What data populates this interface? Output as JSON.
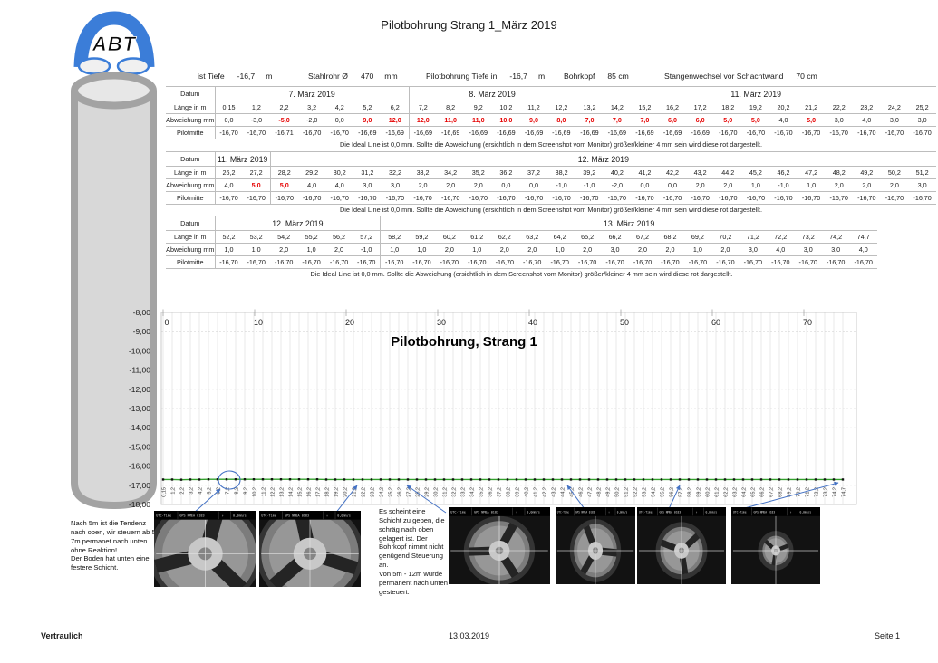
{
  "page": {
    "title": "Pilotbohrung Strang 1_März 2019",
    "footer_left": "Vertraulich",
    "footer_center": "13.03.2019",
    "footer_right": "Seite 1"
  },
  "logo": {
    "text": "ABT"
  },
  "info_row": {
    "items": [
      {
        "label": "ist Tiefe",
        "value": "-16,7",
        "unit": "m"
      },
      {
        "label": "Stahlrohr Ø",
        "value": "470",
        "unit": "mm"
      },
      {
        "label": "Pilotbohrung Tiefe in",
        "value": "-16,7",
        "unit": "m"
      },
      {
        "label": "Bohrkopf",
        "value": "85 cm",
        "unit": ""
      },
      {
        "label": "Stangenwechsel vor Schachtwand",
        "value": "70 cm",
        "unit": ""
      }
    ]
  },
  "row_labels": {
    "datum": "Datum",
    "laenge": "Länge in m",
    "abweichung": "Abweichung mm",
    "pilotmitte": "Pilotmitte"
  },
  "table_note": "Die Ideal Line ist 0,0 mm. Sollte die Abweichung (ersichtlich in dem Screenshot vom Monitor) größer/kleiner 4 mm sein wird diese rot dargestellt.",
  "tables": [
    {
      "groups": [
        {
          "label": "7. März 2019",
          "span": 7
        },
        {
          "label": "8. März 2019",
          "span": 6
        },
        {
          "label": "11. März 2019",
          "span": 13
        }
      ],
      "laenge": [
        "0,15",
        "1,2",
        "2,2",
        "3,2",
        "4,2",
        "5,2",
        "6,2",
        "7,2",
        "8,2",
        "9,2",
        "10,2",
        "11,2",
        "12,2",
        "13,2",
        "14,2",
        "15,2",
        "16,2",
        "17,2",
        "18,2",
        "19,2",
        "20,2",
        "21,2",
        "22,2",
        "23,2",
        "24,2",
        "25,2"
      ],
      "abweichung": [
        "0,0",
        "-3,0",
        "-5,0",
        "-2,0",
        "0,0",
        "9,0",
        "12,0",
        "12,0",
        "11,0",
        "11,0",
        "10,0",
        "9,0",
        "8,0",
        "7,0",
        "7,0",
        "7,0",
        "6,0",
        "6,0",
        "5,0",
        "5,0",
        "4,0",
        "5,0",
        "3,0",
        "4,0",
        "3,0",
        "3,0"
      ],
      "red": [
        2,
        5,
        6,
        7,
        8,
        9,
        10,
        11,
        12,
        13,
        14,
        15,
        16,
        17,
        18,
        19,
        21
      ],
      "pilotmitte": [
        "-16,70",
        "-16,70",
        "-16,71",
        "-16,70",
        "-16,70",
        "-16,69",
        "-16,69",
        "-16,69",
        "-16,69",
        "-16,69",
        "-16,69",
        "-16,69",
        "-16,69",
        "-16,69",
        "-16,69",
        "-16,69",
        "-16,69",
        "-16,69",
        "-16,70",
        "-16,70",
        "-16,70",
        "-16,70",
        "-16,70",
        "-16,70",
        "-16,70",
        "-16,70"
      ]
    },
    {
      "groups": [
        {
          "label": "11. März 2019",
          "span": 2
        },
        {
          "label": "12. März 2019",
          "span": 24
        }
      ],
      "laenge": [
        "26,2",
        "27,2",
        "28,2",
        "29,2",
        "30,2",
        "31,2",
        "32,2",
        "33,2",
        "34,2",
        "35,2",
        "36,2",
        "37,2",
        "38,2",
        "39,2",
        "40,2",
        "41,2",
        "42,2",
        "43,2",
        "44,2",
        "45,2",
        "46,2",
        "47,2",
        "48,2",
        "49,2",
        "50,2",
        "51,2"
      ],
      "abweichung": [
        "4,0",
        "5,0",
        "5,0",
        "4,0",
        "4,0",
        "3,0",
        "3,0",
        "2,0",
        "2,0",
        "2,0",
        "0,0",
        "0,0",
        "-1,0",
        "-1,0",
        "-2,0",
        "0,0",
        "0,0",
        "2,0",
        "2,0",
        "1,0",
        "-1,0",
        "1,0",
        "2,0",
        "2,0",
        "2,0",
        "3,0"
      ],
      "red": [
        1,
        2
      ],
      "pilotmitte": [
        "-16,70",
        "-16,70",
        "-16,70",
        "-16,70",
        "-16,70",
        "-16,70",
        "-16,70",
        "-16,70",
        "-16,70",
        "-16,70",
        "-16,70",
        "-16,70",
        "-16,70",
        "-16,70",
        "-16,70",
        "-16,70",
        "-16,70",
        "-16,70",
        "-16,70",
        "-16,70",
        "-16,70",
        "-16,70",
        "-16,70",
        "-16,70",
        "-16,70",
        "-16,70"
      ]
    },
    {
      "groups": [
        {
          "label": "12. März 2019",
          "span": 6
        },
        {
          "label": "13. März 2019",
          "span": 18
        }
      ],
      "laenge": [
        "52,2",
        "53,2",
        "54,2",
        "55,2",
        "56,2",
        "57,2",
        "58,2",
        "59,2",
        "60,2",
        "61,2",
        "62,2",
        "63,2",
        "64,2",
        "65,2",
        "66,2",
        "67,2",
        "68,2",
        "69,2",
        "70,2",
        "71,2",
        "72,2",
        "73,2",
        "74,2",
        "74,7"
      ],
      "abweichung": [
        "1,0",
        "1,0",
        "2,0",
        "1,0",
        "2,0",
        "-1,0",
        "1,0",
        "1,0",
        "2,0",
        "1,0",
        "2,0",
        "2,0",
        "1,0",
        "2,0",
        "3,0",
        "2,0",
        "2,0",
        "1,0",
        "2,0",
        "3,0",
        "4,0",
        "3,0",
        "3,0",
        "4,0"
      ],
      "red": [],
      "pilotmitte": [
        "-16,70",
        "-16,70",
        "-16,70",
        "-16,70",
        "-16,70",
        "-16,70",
        "-16,70",
        "-16,70",
        "-16,70",
        "-16,70",
        "-16,70",
        "-16,70",
        "-16,70",
        "-16,70",
        "-16,70",
        "-16,70",
        "-16,70",
        "-16,70",
        "-16,70",
        "-16,70",
        "-16,70",
        "-16,70",
        "-16,70",
        "-16,70"
      ]
    }
  ],
  "chart_data": {
    "type": "line",
    "title": "Pilotbohrung, Strang 1",
    "xlabel": "",
    "ylabel": "",
    "ylim": [
      -18,
      -8
    ],
    "grid": true,
    "y_tick_labels": [
      "-8,00",
      "-9,00",
      "-10,00",
      "-11,00",
      "-12,00",
      "-13,00",
      "-14,00",
      "-15,00",
      "-16,00",
      "-17,00",
      "-18,00"
    ],
    "top_axis_labels": [
      "0",
      "10",
      "20",
      "30",
      "40",
      "50",
      "60",
      "70"
    ],
    "x_categories": [
      "0,15",
      "1,2",
      "2,2",
      "3,2",
      "4,2",
      "5,2",
      "6,2",
      "7,2",
      "8,2",
      "9,2",
      "10,2",
      "11,2",
      "12,2",
      "13,2",
      "14,2",
      "15,2",
      "16,2",
      "17,2",
      "18,2",
      "19,2",
      "20,2",
      "21,2",
      "22,2",
      "23,2",
      "24,2",
      "25,2",
      "26,2",
      "27,2",
      "28,2",
      "29,2",
      "30,2",
      "31,2",
      "32,2",
      "33,2",
      "34,2",
      "35,2",
      "36,2",
      "37,2",
      "38,2",
      "39,2",
      "40,2",
      "41,2",
      "42,2",
      "43,2",
      "44,2",
      "45,2",
      "46,2",
      "47,2",
      "48,2",
      "49,2",
      "50,2",
      "51,2",
      "52,2",
      "53,2",
      "54,2",
      "55,2",
      "56,2",
      "57,2",
      "58,2",
      "59,2",
      "60,2",
      "61,2",
      "62,2",
      "63,2",
      "64,2",
      "65,2",
      "66,2",
      "67,2",
      "68,2",
      "69,2",
      "70,2",
      "71,2",
      "72,2",
      "73,2",
      "74,2",
      "74,7"
    ],
    "series": [
      {
        "name": "Pilotmitte",
        "values": [
          -16.7,
          -16.7,
          -16.71,
          -16.7,
          -16.7,
          -16.69,
          -16.69,
          -16.69,
          -16.69,
          -16.69,
          -16.69,
          -16.69,
          -16.69,
          -16.69,
          -16.69,
          -16.69,
          -16.69,
          -16.69,
          -16.7,
          -16.7,
          -16.7,
          -16.7,
          -16.7,
          -16.7,
          -16.7,
          -16.7,
          -16.7,
          -16.7,
          -16.7,
          -16.7,
          -16.7,
          -16.7,
          -16.7,
          -16.7,
          -16.7,
          -16.7,
          -16.7,
          -16.7,
          -16.7,
          -16.7,
          -16.7,
          -16.7,
          -16.7,
          -16.7,
          -16.7,
          -16.7,
          -16.7,
          -16.7,
          -16.7,
          -16.7,
          -16.7,
          -16.7,
          -16.7,
          -16.7,
          -16.7,
          -16.7,
          -16.7,
          -16.7,
          -16.7,
          -16.7,
          -16.7,
          -16.7,
          -16.7,
          -16.7,
          -16.7,
          -16.7,
          -16.7,
          -16.7,
          -16.7,
          -16.7,
          -16.7,
          -16.7,
          -16.7,
          -16.7,
          -16.7,
          -16.7
        ]
      }
    ],
    "line_color": "#33a02c",
    "marker_color": "#111111"
  },
  "annotations": {
    "left_note": "Nach 5m ist die Tendenz nach oben, wir steuern ab 5-7m permanet nach unten ohne Reaktion!\nDer Boden hat unten eine festere Schicht.",
    "middle_note": "Es scheint eine Schicht zu geben, die schräg nach oben gelagert ist. Der Bohrkopf nimmt nicht genügend Steuerung an.\nVon 5m - 12m wurde permanent nach unten gesteuert."
  },
  "camera": {
    "header_left": "UTC-Time",
    "header_mid": "GPS NMEA 0183",
    "header_arrow": "↑",
    "header_right": "0,0mm/s",
    "count": 6
  },
  "colors": {
    "accent_blue": "#4472c4",
    "alert_red": "#e60000",
    "line_green": "#33a02c",
    "cylinder_gray": "#d8d8d8",
    "cylinder_border": "#a3a3a3",
    "logo_blue": "#3b7dd8"
  }
}
